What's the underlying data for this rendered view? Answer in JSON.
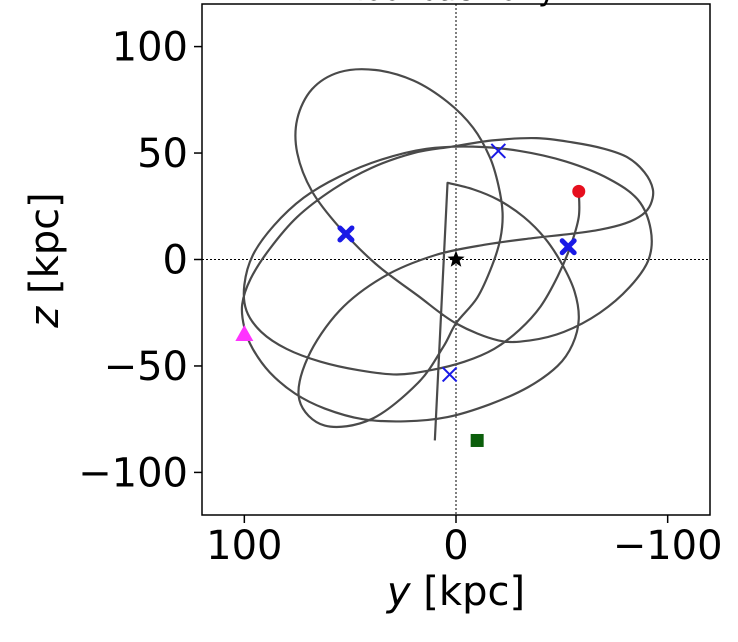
{
  "chart_data": {
    "type": "line",
    "title": "lookback of $y$",
    "xlabel_var": "y",
    "xlabel_unit": " [kpc]",
    "ylabel_var": "z",
    "ylabel_unit": " [kpc]",
    "xlim": [
      120,
      -120
    ],
    "ylim": [
      -120,
      120
    ],
    "xticks": [
      100,
      0,
      -100
    ],
    "yticks": [
      100,
      50,
      0,
      -50,
      -100
    ],
    "xtick_labels": [
      "100",
      "0",
      "−100"
    ],
    "ytick_labels": [
      "100",
      "50",
      "0",
      "−50",
      "−100"
    ],
    "grid": false,
    "reference_lines": {
      "x": 0,
      "y": 0
    },
    "colors": {
      "orbit": "#4a4a4a",
      "marker_blue": "#1a1ae6",
      "start": "#e60f1e",
      "end_triangle": "#ff33ff",
      "end_square": "#0b5e0b",
      "center": "#000000"
    },
    "series": [
      {
        "points": [
          [
            -58,
            32
          ],
          [
            -58,
            20
          ],
          [
            -54,
            6
          ],
          [
            -48,
            -8
          ],
          [
            -40,
            -22
          ],
          [
            -30,
            -33
          ],
          [
            -18,
            -42
          ],
          [
            -4,
            -48
          ],
          [
            12,
            -52
          ],
          [
            28,
            -54
          ],
          [
            46,
            -52
          ],
          [
            64,
            -48
          ],
          [
            80,
            -42
          ],
          [
            92,
            -34
          ],
          [
            99,
            -24
          ],
          [
            100,
            -12
          ],
          [
            96,
            2
          ],
          [
            86,
            16
          ],
          [
            72,
            29
          ],
          [
            55,
            39
          ],
          [
            35,
            47
          ],
          [
            14,
            52
          ],
          [
            -8,
            53
          ],
          [
            -30,
            51
          ],
          [
            -52,
            46
          ],
          [
            -72,
            38
          ],
          [
            -86,
            28
          ],
          [
            -92,
            14
          ],
          [
            -91,
            0
          ],
          [
            -82,
            -13
          ],
          [
            -68,
            -25
          ],
          [
            -51,
            -34
          ],
          [
            -35,
            -38
          ],
          [
            -20,
            -38
          ],
          [
            0,
            -30
          ],
          [
            18,
            -17
          ],
          [
            38,
            -2
          ],
          [
            55,
            15
          ],
          [
            68,
            32
          ],
          [
            75,
            50
          ],
          [
            75,
            66
          ],
          [
            68,
            80
          ],
          [
            55,
            88
          ],
          [
            38,
            89
          ],
          [
            20,
            84
          ],
          [
            4,
            74
          ],
          [
            -8,
            62
          ],
          [
            -16,
            48
          ],
          [
            -20,
            35
          ],
          [
            -22,
            22
          ],
          [
            -21,
            10
          ],
          [
            -17,
            -3
          ],
          [
            -10,
            -18
          ],
          [
            0,
            -30
          ],
          [
            6,
            -41
          ],
          [
            18,
            -58
          ],
          [
            40,
            -75
          ],
          [
            62,
            -78
          ],
          [
            74,
            -66
          ],
          [
            70,
            -46
          ],
          [
            55,
            -24
          ],
          [
            34,
            -8
          ],
          [
            10,
            2
          ],
          [
            -14,
            7
          ],
          [
            -36,
            10
          ],
          [
            -54,
            12
          ],
          [
            -68,
            14
          ],
          [
            -80,
            17
          ],
          [
            -88,
            21
          ],
          [
            -92,
            26
          ],
          [
            -93,
            33
          ],
          [
            -89,
            41
          ],
          [
            -81,
            48
          ],
          [
            -70,
            52
          ],
          [
            -55,
            55
          ],
          [
            -38,
            57
          ],
          [
            -18,
            56
          ],
          [
            2,
            53
          ],
          [
            20,
            50
          ],
          [
            40,
            43
          ],
          [
            58,
            33
          ],
          [
            75,
            20
          ],
          [
            88,
            5
          ],
          [
            97,
            -9
          ],
          [
            101,
            -21
          ],
          [
            100,
            -32
          ],
          [
            96,
            -42
          ],
          [
            88,
            -53
          ],
          [
            76,
            -63
          ],
          [
            62,
            -70
          ],
          [
            44,
            -75
          ],
          [
            24,
            -76
          ],
          [
            4,
            -74
          ],
          [
            -16,
            -68
          ],
          [
            -34,
            -60
          ],
          [
            -48,
            -50
          ],
          [
            -55,
            -40
          ],
          [
            -58,
            -28
          ],
          [
            -56,
            -15
          ],
          [
            -50,
            -2
          ],
          [
            -42,
            10
          ],
          [
            -32,
            20
          ],
          [
            -20,
            28
          ],
          [
            -8,
            33
          ],
          [
            4,
            36
          ],
          [
            10,
            -85
          ]
        ]
      }
    ],
    "markers": [
      {
        "type": "circle",
        "x": -58,
        "y": 32,
        "color": "start"
      },
      {
        "type": "triangle",
        "x": 100,
        "y": -35,
        "color": "end_triangle"
      },
      {
        "type": "square",
        "x": -10,
        "y": -85,
        "color": "end_square"
      },
      {
        "type": "star",
        "x": 0,
        "y": 0,
        "color": "center"
      },
      {
        "type": "bold-x",
        "x": 52,
        "y": 12,
        "color": "marker_blue"
      },
      {
        "type": "bold-x",
        "x": -53,
        "y": 6,
        "color": "marker_blue"
      },
      {
        "type": "x",
        "x": -20,
        "y": 51,
        "color": "marker_blue"
      },
      {
        "type": "x",
        "x": 3,
        "y": -54,
        "color": "marker_blue"
      }
    ]
  }
}
